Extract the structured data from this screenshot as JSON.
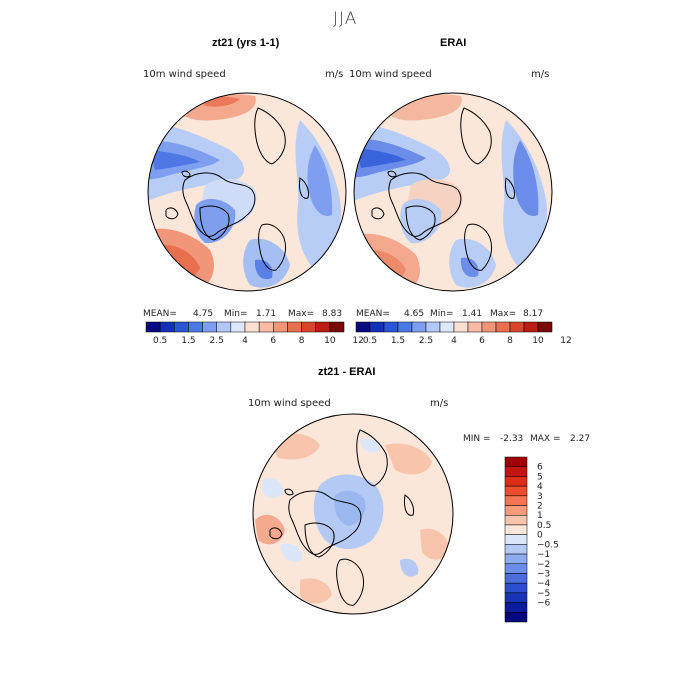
{
  "figure": {
    "title": "JJA"
  },
  "panels": [
    {
      "id": "model",
      "title": "zt21 (yrs 1-1)",
      "variable_label": "10m wind speed",
      "units_label": "m/s",
      "stats": {
        "mean_label": "MEAN=",
        "mean": "4.75",
        "min_label": "Min=",
        "min": "1.71",
        "max_label": "Max=",
        "max": "8.83"
      }
    },
    {
      "id": "obs",
      "title": "ERAI",
      "variable_label": "10m wind speed",
      "units_label": "m/s",
      "stats": {
        "mean_label": "MEAN=",
        "mean": "4.65",
        "min_label": "Min=",
        "min": "1.41",
        "max_label": "Max=",
        "max": "8.17"
      }
    },
    {
      "id": "diff",
      "title": "zt21 - ERAI",
      "variable_label": "10m wind speed",
      "units_label": "m/s",
      "stats": {
        "min_label": "MIN =",
        "min": "-2.33",
        "max_label": "MAX =",
        "max": "2.27"
      }
    }
  ],
  "colorbars": {
    "absolute": {
      "colors": [
        "#0a0a80",
        "#1530b8",
        "#2a55d6",
        "#4a78e6",
        "#7e9ff0",
        "#b1c7f6",
        "#dde8fb",
        "#fbe0d2",
        "#f7bba6",
        "#f29679",
        "#e8704f",
        "#d9452b",
        "#b81e14",
        "#7a0a0a"
      ],
      "tick_labels": [
        "0.5",
        "1.5",
        "2.5",
        "4",
        "6",
        "8",
        "10",
        "12"
      ]
    },
    "difference": {
      "colors": [
        "#a00000",
        "#c41610",
        "#de2e1a",
        "#ec4d2e",
        "#f27452",
        "#f59b7c",
        "#f8c5ac",
        "#fbe6da",
        "#dbe6f8",
        "#b4c9f4",
        "#8eabee",
        "#6b8ce8",
        "#4a6ede",
        "#2b4fd0",
        "#1835b8",
        "#0a1c9c",
        "#04087c"
      ],
      "tick_labels": [
        "6",
        "5",
        "4",
        "3",
        "2",
        "1",
        "0.5",
        "0",
        "−0.5",
        "−1",
        "−2",
        "−3",
        "−4",
        "−5",
        "−6"
      ]
    }
  }
}
